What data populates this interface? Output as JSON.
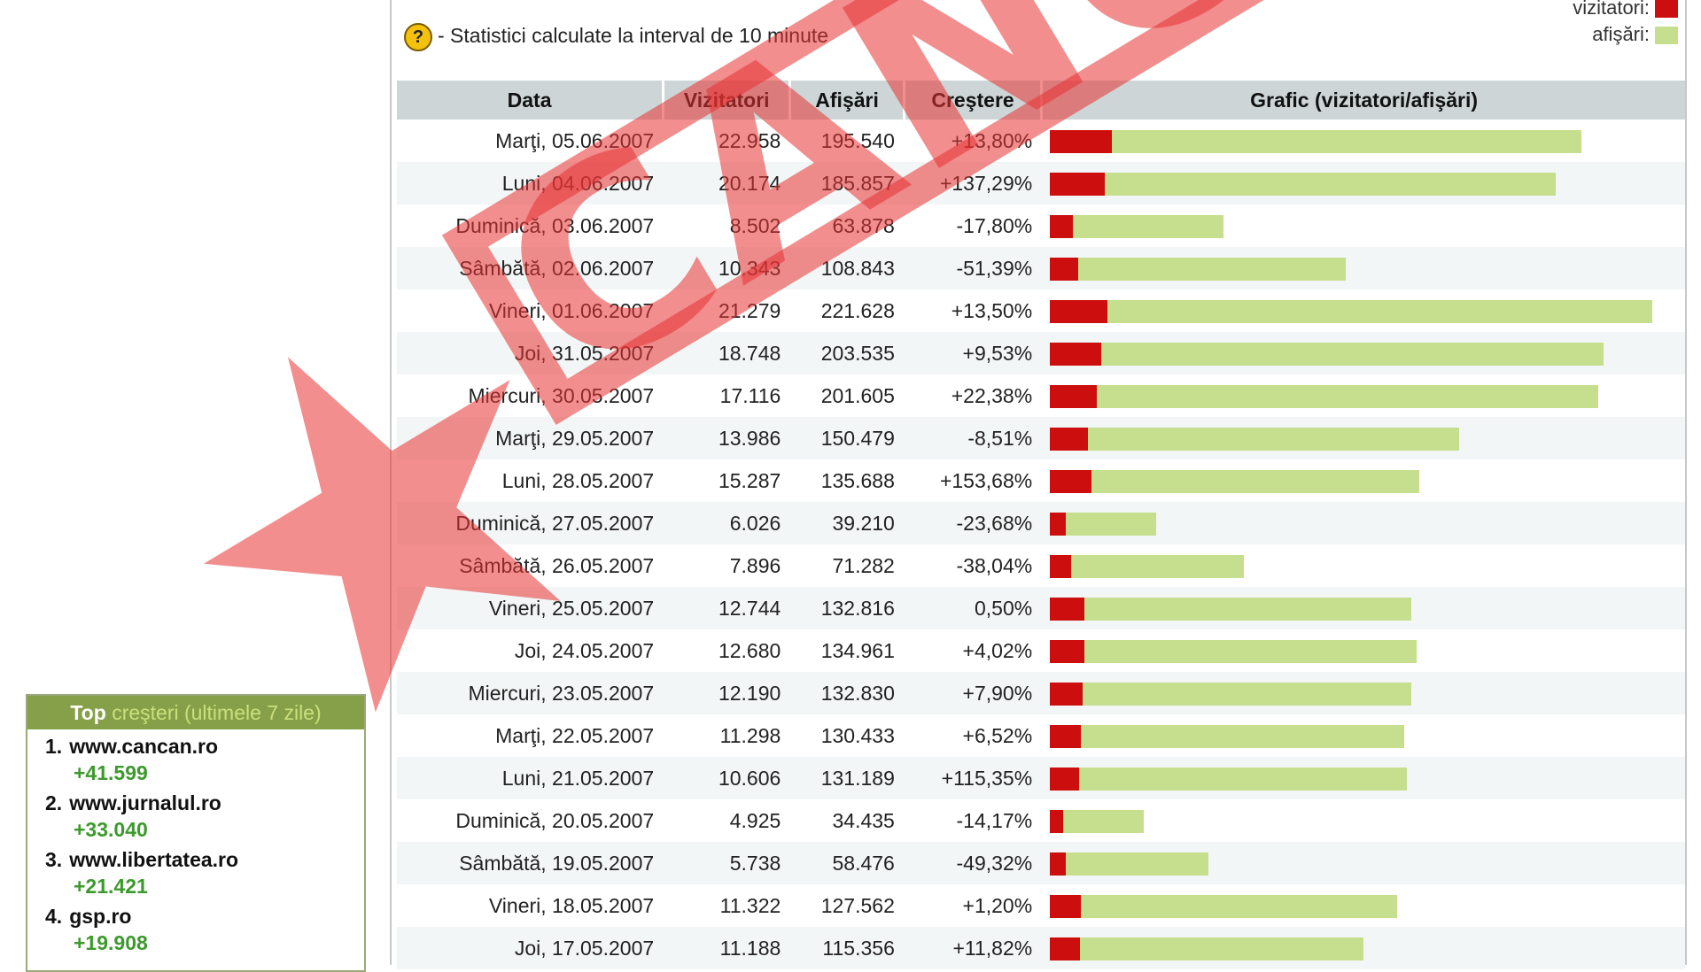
{
  "info": {
    "text": "- Statistici calculate la interval de 10 minute"
  },
  "legend": {
    "vizitatori_label": "vizitatori:",
    "afisari_label": "afişări:",
    "vizitatori_color": "#cc0e0e",
    "afisari_color": "#c5df8e"
  },
  "table": {
    "headers": {
      "data": "Data",
      "vizitatori": "Vizitatori",
      "afisari": "Afişări",
      "crestere": "Creştere",
      "grafic": "Grafic (vizitatori/afişări)"
    },
    "max_afisari": 230000,
    "rows": [
      {
        "data": "Marţi, 05.06.2007",
        "vizitatori": "22.958",
        "afisari": "195.540",
        "crestere": "+13,80%",
        "v": 22958,
        "a": 195540
      },
      {
        "data": "Luni, 04.06.2007",
        "vizitatori": "20.174",
        "afisari": "185.857",
        "crestere": "+137,29%",
        "v": 20174,
        "a": 185857
      },
      {
        "data": "Duminică, 03.06.2007",
        "vizitatori": "8.502",
        "afisari": "63.878",
        "crestere": "-17,80%",
        "v": 8502,
        "a": 63878
      },
      {
        "data": "Sâmbătă, 02.06.2007",
        "vizitatori": "10.343",
        "afisari": "108.843",
        "crestere": "-51,39%",
        "v": 10343,
        "a": 108843
      },
      {
        "data": "Vineri, 01.06.2007",
        "vizitatori": "21.279",
        "afisari": "221.628",
        "crestere": "+13,50%",
        "v": 21279,
        "a": 221628
      },
      {
        "data": "Joi, 31.05.2007",
        "vizitatori": "18.748",
        "afisari": "203.535",
        "crestere": "+9,53%",
        "v": 18748,
        "a": 203535
      },
      {
        "data": "Miercuri, 30.05.2007",
        "vizitatori": "17.116",
        "afisari": "201.605",
        "crestere": "+22,38%",
        "v": 17116,
        "a": 201605
      },
      {
        "data": "Marţi, 29.05.2007",
        "vizitatori": "13.986",
        "afisari": "150.479",
        "crestere": "-8,51%",
        "v": 13986,
        "a": 150479
      },
      {
        "data": "Luni, 28.05.2007",
        "vizitatori": "15.287",
        "afisari": "135.688",
        "crestere": "+153,68%",
        "v": 15287,
        "a": 135688
      },
      {
        "data": "Duminică, 27.05.2007",
        "vizitatori": "6.026",
        "afisari": "39.210",
        "crestere": "-23,68%",
        "v": 6026,
        "a": 39210
      },
      {
        "data": "Sâmbătă, 26.05.2007",
        "vizitatori": "7.896",
        "afisari": "71.282",
        "crestere": "-38,04%",
        "v": 7896,
        "a": 71282
      },
      {
        "data": "Vineri, 25.05.2007",
        "vizitatori": "12.744",
        "afisari": "132.816",
        "crestere": "0,50%",
        "v": 12744,
        "a": 132816
      },
      {
        "data": "Joi, 24.05.2007",
        "vizitatori": "12.680",
        "afisari": "134.961",
        "crestere": "+4,02%",
        "v": 12680,
        "a": 134961
      },
      {
        "data": "Miercuri, 23.05.2007",
        "vizitatori": "12.190",
        "afisari": "132.830",
        "crestere": "+7,90%",
        "v": 12190,
        "a": 132830
      },
      {
        "data": "Marţi, 22.05.2007",
        "vizitatori": "11.298",
        "afisari": "130.433",
        "crestere": "+6,52%",
        "v": 11298,
        "a": 130433
      },
      {
        "data": "Luni, 21.05.2007",
        "vizitatori": "10.606",
        "afisari": "131.189",
        "crestere": "+115,35%",
        "v": 10606,
        "a": 131189
      },
      {
        "data": "Duminică, 20.05.2007",
        "vizitatori": "4.925",
        "afisari": "34.435",
        "crestere": "-14,17%",
        "v": 4925,
        "a": 34435
      },
      {
        "data": "Sâmbătă, 19.05.2007",
        "vizitatori": "5.738",
        "afisari": "58.476",
        "crestere": "-49,32%",
        "v": 5738,
        "a": 58476
      },
      {
        "data": "Vineri, 18.05.2007",
        "vizitatori": "11.322",
        "afisari": "127.562",
        "crestere": "+1,20%",
        "v": 11322,
        "a": 127562
      },
      {
        "data": "Joi, 17.05.2007",
        "vizitatori": "11.188",
        "afisari": "115.356",
        "crestere": "+11,82%",
        "v": 11188,
        "a": 115356
      }
    ]
  },
  "top": {
    "title_part1": "Top ",
    "title_part2": "creşteri (ultimele 7 zile)",
    "items": [
      {
        "rank": "1.",
        "site": "www.cancan.ro",
        "increase": "+41.599"
      },
      {
        "rank": "2.",
        "site": "www.jurnalul.ro",
        "increase": "+33.040"
      },
      {
        "rank": "3.",
        "site": "www.libertatea.ro",
        "increase": "+21.421"
      },
      {
        "rank": "4.",
        "site": "gsp.ro",
        "increase": "+19.908"
      }
    ]
  },
  "watermark": {
    "text": "CANCAN",
    "color": "#e83232"
  }
}
